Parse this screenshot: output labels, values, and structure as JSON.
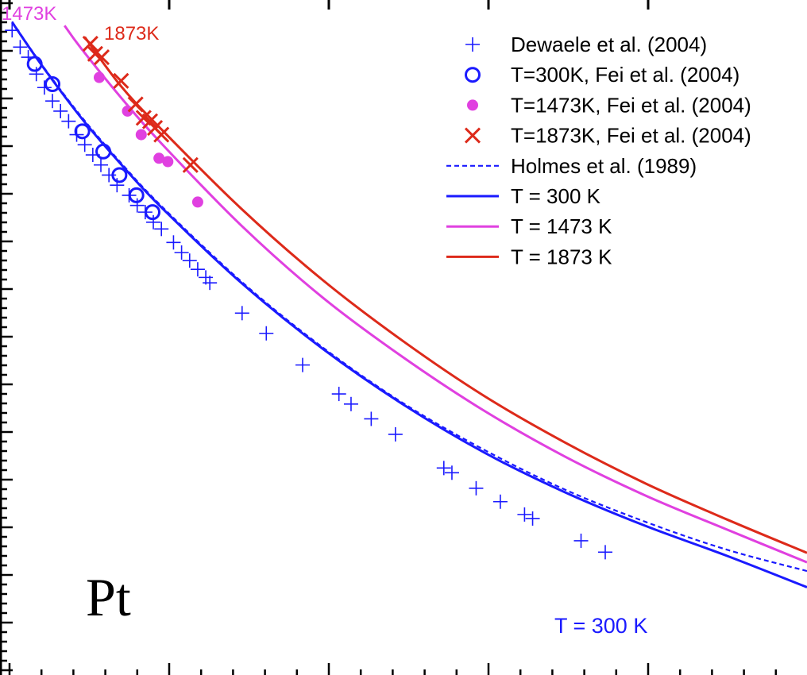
{
  "chart_data": {
    "type": "scatter",
    "title": "",
    "xlabel": "",
    "ylabel": "",
    "xlim": [
      0,
      100
    ],
    "ylim": [
      0,
      100
    ],
    "grid": false,
    "legend_position": "top-right",
    "annotations": {
      "element": "Pt",
      "curve_300": "T = 300 K",
      "curve_1473": "1473K",
      "curve_1873": "1873K"
    },
    "colors": {
      "blue": "#1a1aff",
      "magenta": "#e040e0",
      "red": "#dd2a1a",
      "axis": "#000000"
    },
    "legend": [
      {
        "label": "Dewaele et al. (2004)",
        "kind": "marker",
        "marker": "plus",
        "color": "#1a1aff"
      },
      {
        "label": "T=300K, Fei et al. (2004)",
        "kind": "marker",
        "marker": "open-circle",
        "color": "#1a1aff"
      },
      {
        "label": "T=1473K, Fei et al. (2004)",
        "kind": "marker",
        "marker": "filled-circle",
        "color": "#e040e0"
      },
      {
        "label": "T=1873K, Fei et al. (2004)",
        "kind": "marker",
        "marker": "cross",
        "color": "#dd2a1a"
      },
      {
        "label": "Holmes et al. (1989)",
        "kind": "line",
        "dash": true,
        "color": "#1a1aff"
      },
      {
        "label": "T = 300  K",
        "kind": "line",
        "dash": false,
        "color": "#1a1aff"
      },
      {
        "label": "T = 1473  K",
        "kind": "line",
        "dash": false,
        "color": "#e040e0"
      },
      {
        "label": "T = 1873  K",
        "kind": "line",
        "dash": false,
        "color": "#dd2a1a"
      }
    ],
    "series": [
      {
        "name": "Dewaele et al. (2004)",
        "kind": "scatter",
        "marker": "plus",
        "color": "#1a1aff",
        "x": [
          1.5,
          2.5,
          3.5,
          4.5,
          5.5,
          6.5,
          7.5,
          8.5,
          9.5,
          10.5,
          11.5,
          12.5,
          13.5,
          14.5,
          16,
          17,
          18,
          19,
          20,
          21.5,
          22.5,
          23.5,
          24.5,
          25.5,
          26,
          30,
          33,
          37.5,
          42,
          43.5,
          46,
          49,
          55,
          56,
          59,
          62,
          65,
          66,
          72,
          75
        ],
        "y": [
          95.5,
          93,
          91.5,
          89,
          87,
          85,
          83.5,
          82,
          80,
          78.5,
          77,
          75.5,
          74,
          72.5,
          71,
          69.5,
          68.5,
          67,
          66,
          64,
          62.5,
          61.3,
          60,
          58.8,
          58,
          53.5,
          50.5,
          45.8,
          41.5,
          40,
          37.8,
          35.5,
          30.5,
          29.8,
          27.5,
          25.5,
          23.6,
          23,
          19.7,
          18
        ]
      },
      {
        "name": "T=300K, Fei et al. (2004)",
        "kind": "scatter",
        "marker": "open-circle",
        "color": "#1a1aff",
        "x": [
          4.3,
          6.5,
          10.2,
          12.8,
          14.8,
          16.9,
          18.9
        ],
        "y": [
          90.5,
          87.5,
          80.5,
          77.5,
          74,
          71,
          68.5
        ]
      },
      {
        "name": "T=1473K, Fei et al. (2004)",
        "kind": "scatter",
        "marker": "filled-circle",
        "color": "#e040e0",
        "x": [
          12.3,
          15.8,
          17.5,
          19.7,
          20.8,
          24.5
        ],
        "y": [
          88.5,
          83.5,
          80,
          76.5,
          76,
          70
        ]
      },
      {
        "name": "T=1873K, Fei et al. (2004)",
        "kind": "scatter",
        "marker": "cross",
        "color": "#dd2a1a",
        "x": [
          11.2,
          11.8,
          12.6,
          15,
          16.8,
          17.8,
          18.6,
          19.2,
          20,
          23.6
        ],
        "y": [
          93.5,
          92,
          91.5,
          88,
          84.5,
          82.5,
          82,
          81,
          80,
          75.5
        ]
      },
      {
        "name": "Holmes et al. (1989)",
        "kind": "line",
        "dash": true,
        "color": "#1a1aff",
        "x": [
          1.5,
          5,
          10,
          15,
          20,
          30,
          40,
          50,
          60,
          70,
          80,
          90,
          100
        ],
        "y": [
          96.8,
          90.7,
          82.8,
          75.8,
          69.4,
          58.1,
          48.4,
          40.1,
          33.2,
          27.3,
          22.5,
          18.4,
          15.2
        ]
      },
      {
        "name": "T = 300  K",
        "kind": "line",
        "dash": false,
        "color": "#1a1aff",
        "x": [
          1.5,
          5,
          10,
          15,
          20,
          30,
          40,
          50,
          60,
          70,
          80,
          90,
          100
        ],
        "y": [
          96.7,
          90.6,
          82.6,
          75.6,
          69.2,
          57.9,
          48.2,
          39.9,
          32.8,
          26.9,
          21.9,
          17.5,
          12.8
        ]
      },
      {
        "name": "T = 1473  K",
        "kind": "line",
        "dash": false,
        "color": "#e040e0",
        "x": [
          8,
          10,
          15,
          20,
          30,
          40,
          50,
          60,
          70,
          80,
          90,
          100
        ],
        "y": [
          96.2,
          92.9,
          85.5,
          78.7,
          66.4,
          55.8,
          46.9,
          39,
          32.2,
          26.4,
          21.4,
          16.5
        ]
      },
      {
        "name": "T = 1873  K",
        "kind": "line",
        "dash": false,
        "color": "#dd2a1a",
        "x": [
          10.5,
          15,
          20,
          30,
          40,
          50,
          60,
          70,
          80,
          90,
          100
        ],
        "y": [
          94.5,
          87.2,
          80.8,
          68.9,
          58.4,
          49.3,
          41.2,
          34.3,
          28.2,
          22.9,
          17.9
        ]
      }
    ]
  }
}
